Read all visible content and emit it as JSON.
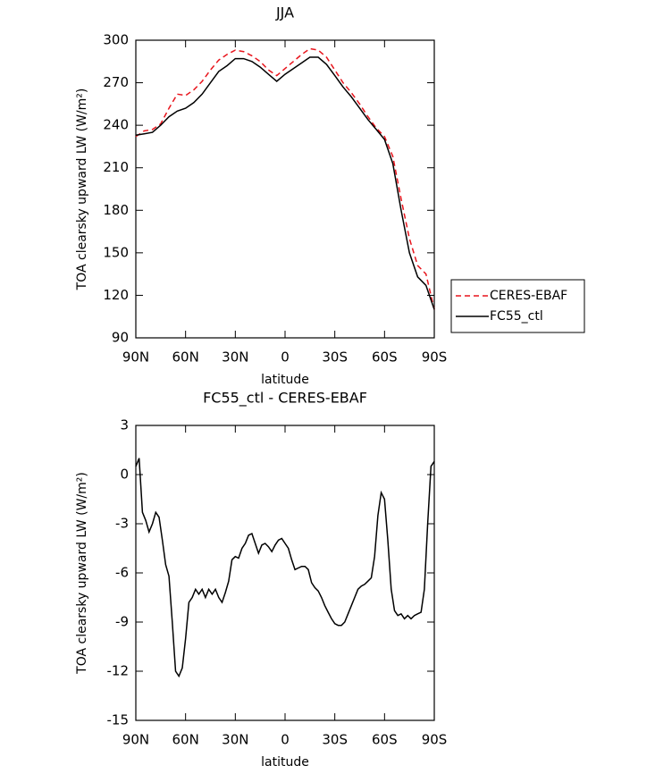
{
  "chart_data": [
    {
      "type": "line",
      "title": "JJA",
      "x_label": "latitude",
      "y_label": "TOA clearsky upward LW (W/m²)",
      "x": [
        90,
        85,
        80,
        75,
        70,
        65,
        60,
        55,
        50,
        45,
        40,
        35,
        30,
        25,
        20,
        15,
        10,
        5,
        0,
        -5,
        -10,
        -15,
        -20,
        -25,
        -30,
        -35,
        -40,
        -45,
        -50,
        -55,
        -60,
        -65,
        -70,
        -75,
        -80,
        -85,
        -90
      ],
      "series": [
        {
          "name": "CERES-EBAF",
          "color": "#e8141c",
          "style": "dashed",
          "values": [
            232,
            236,
            237,
            241,
            252,
            262,
            261,
            265,
            271,
            279,
            286,
            290,
            293,
            292,
            289,
            285,
            279,
            275,
            280,
            285,
            290,
            294,
            293,
            288,
            279,
            270,
            263,
            255,
            246,
            238,
            232,
            218,
            188,
            160,
            141,
            135,
            110
          ]
        },
        {
          "name": "FC55_ctl",
          "color": "#000000",
          "style": "solid",
          "values": [
            233,
            234,
            235,
            240,
            246,
            250,
            252,
            256,
            262,
            270,
            278,
            282,
            287,
            287,
            285,
            281,
            276,
            271,
            276,
            280,
            284,
            288,
            288,
            283,
            275,
            267,
            260,
            252,
            244,
            237,
            230,
            213,
            180,
            150,
            133,
            127,
            110
          ]
        }
      ],
      "xlim": [
        90,
        -90
      ],
      "xticks": [
        {
          "value": 90,
          "label": "90N"
        },
        {
          "value": 60,
          "label": "60N"
        },
        {
          "value": 30,
          "label": "30N"
        },
        0,
        {
          "value": -30,
          "label": "30S"
        },
        {
          "value": -60,
          "label": "60S"
        },
        {
          "value": -90,
          "label": "90S"
        }
      ],
      "ylim": [
        90,
        300
      ],
      "yticks": [
        90,
        120,
        150,
        180,
        210,
        240,
        270,
        300
      ],
      "legend": "right"
    },
    {
      "type": "line",
      "title": "FC55_ctl - CERES-EBAF",
      "x_label": "latitude",
      "y_label": "TOA clearsky upward LW (W/m²)",
      "x": [
        90,
        88,
        86,
        84,
        82,
        80,
        78,
        76,
        74,
        72,
        70,
        68,
        66,
        64,
        62,
        60,
        58,
        56,
        54,
        52,
        50,
        48,
        46,
        44,
        42,
        40,
        38,
        36,
        34,
        32,
        30,
        28,
        26,
        24,
        22,
        20,
        18,
        16,
        14,
        12,
        10,
        8,
        6,
        4,
        2,
        0,
        -2,
        -4,
        -6,
        -8,
        -10,
        -12,
        -14,
        -16,
        -18,
        -20,
        -22,
        -24,
        -26,
        -28,
        -30,
        -32,
        -34,
        -36,
        -38,
        -40,
        -42,
        -44,
        -46,
        -48,
        -50,
        -52,
        -54,
        -56,
        -58,
        -60,
        -62,
        -64,
        -66,
        -68,
        -70,
        -72,
        -74,
        -76,
        -78,
        -80,
        -82,
        -84,
        -86,
        -88,
        -90
      ],
      "color": "#000000",
      "values": [
        0.5,
        1.0,
        -2.3,
        -2.8,
        -3.5,
        -3.0,
        -2.3,
        -2.6,
        -4,
        -5.5,
        -6.2,
        -9,
        -12.0,
        -12.3,
        -11.8,
        -10,
        -7.8,
        -7.5,
        -7,
        -7.3,
        -7,
        -7.5,
        -7,
        -7.3,
        -7,
        -7.5,
        -7.8,
        -7.2,
        -6.5,
        -5.2,
        -5,
        -5.1,
        -4.5,
        -4.2,
        -3.7,
        -3.6,
        -4.2,
        -4.8,
        -4.3,
        -4.2,
        -4.4,
        -4.7,
        -4.3,
        -4.0,
        -3.9,
        -4.2,
        -4.5,
        -5.2,
        -5.8,
        -5.7,
        -5.6,
        -5.6,
        -5.8,
        -6.6,
        -6.9,
        -7.1,
        -7.5,
        -8.0,
        -8.4,
        -8.8,
        -9.1,
        -9.2,
        -9.2,
        -9.0,
        -8.5,
        -8,
        -7.5,
        -7,
        -6.8,
        -6.7,
        -6.5,
        -6.3,
        -5,
        -2.5,
        -1.1,
        -1.5,
        -4,
        -7,
        -8.3,
        -8.6,
        -8.5,
        -8.8,
        -8.6,
        -8.8,
        -8.6,
        -8.5,
        -8.4,
        -7,
        -3,
        0.5,
        0.8
      ],
      "xlim": [
        90,
        -90
      ],
      "xticks": [
        {
          "value": 90,
          "label": "90N"
        },
        {
          "value": 60,
          "label": "60N"
        },
        {
          "value": 30,
          "label": "30N"
        },
        0,
        {
          "value": -30,
          "label": "30S"
        },
        {
          "value": -60,
          "label": "60S"
        },
        {
          "value": -90,
          "label": "90S"
        }
      ],
      "ylim": [
        -15,
        3
      ],
      "yticks": [
        -15,
        -12,
        -9,
        -6,
        -3,
        0,
        3
      ]
    }
  ]
}
